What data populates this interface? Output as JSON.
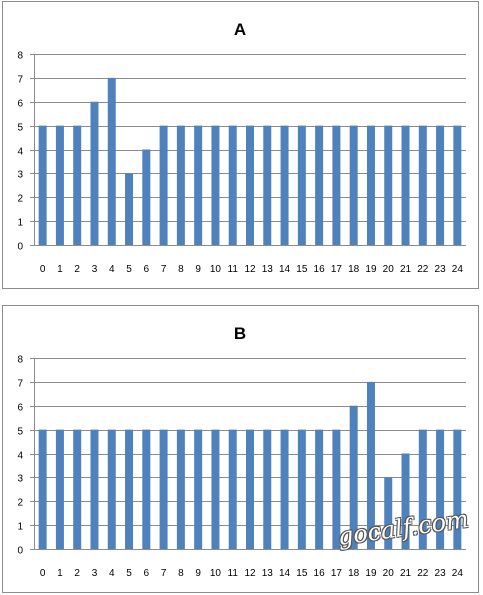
{
  "watermark": "gocalf.com",
  "colors": {
    "bar": "#4f81bd",
    "grid": "#8c8c8c",
    "border": "#8c8c8c"
  },
  "chart_data": [
    {
      "type": "bar",
      "title": "A",
      "xlabel": "",
      "ylabel": "",
      "ylim": [
        0,
        8
      ],
      "yticks": [
        0,
        1,
        2,
        3,
        4,
        5,
        6,
        7,
        8
      ],
      "grid": true,
      "legend": "none",
      "categories": [
        "0",
        "1",
        "2",
        "3",
        "4",
        "5",
        "6",
        "7",
        "8",
        "9",
        "10",
        "11",
        "12",
        "13",
        "14",
        "15",
        "16",
        "17",
        "18",
        "19",
        "20",
        "21",
        "22",
        "23",
        "24"
      ],
      "values": [
        5,
        5,
        5,
        6,
        7,
        3,
        4,
        5,
        5,
        5,
        5,
        5,
        5,
        5,
        5,
        5,
        5,
        5,
        5,
        5,
        5,
        5,
        5,
        5,
        5
      ]
    },
    {
      "type": "bar",
      "title": "B",
      "xlabel": "",
      "ylabel": "",
      "ylim": [
        0,
        8
      ],
      "yticks": [
        0,
        1,
        2,
        3,
        4,
        5,
        6,
        7,
        8
      ],
      "grid": true,
      "legend": "none",
      "categories": [
        "0",
        "1",
        "2",
        "3",
        "4",
        "5",
        "6",
        "7",
        "8",
        "9",
        "10",
        "11",
        "12",
        "13",
        "14",
        "15",
        "16",
        "17",
        "18",
        "19",
        "20",
        "21",
        "22",
        "23",
        "24"
      ],
      "values": [
        5,
        5,
        5,
        5,
        5,
        5,
        5,
        5,
        5,
        5,
        5,
        5,
        5,
        5,
        5,
        5,
        5,
        5,
        6,
        7,
        3,
        4,
        5,
        5,
        5
      ]
    }
  ]
}
